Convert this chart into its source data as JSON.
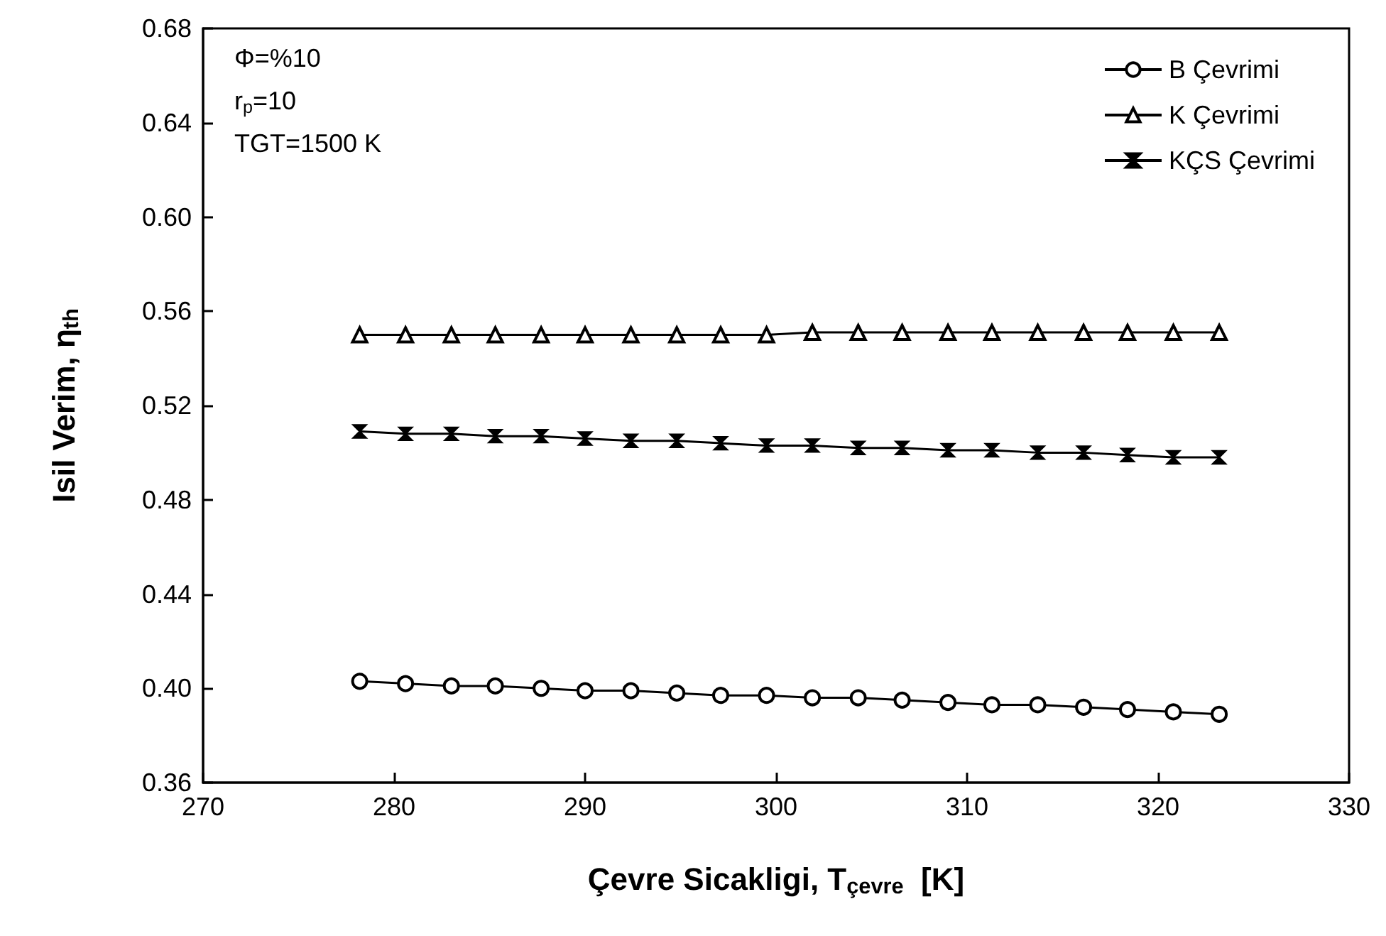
{
  "chart_data": {
    "type": "line",
    "xlabel": "Çevre Sicakligi, T$_{çevre}$  [K]",
    "ylabel": "Isil Verim, η$_{th}$",
    "x": [
      278.2,
      280.6,
      283.0,
      285.3,
      287.7,
      290.0,
      292.4,
      294.8,
      297.1,
      299.5,
      301.9,
      304.3,
      306.6,
      309.0,
      311.3,
      313.7,
      316.1,
      318.4,
      320.8,
      323.2
    ],
    "series": [
      {
        "name": "B Çevrimi",
        "color": "#000000",
        "marker": "circle",
        "values": [
          0.403,
          0.402,
          0.401,
          0.401,
          0.4,
          0.399,
          0.399,
          0.398,
          0.397,
          0.397,
          0.396,
          0.396,
          0.395,
          0.394,
          0.393,
          0.393,
          0.392,
          0.391,
          0.39,
          0.389
        ]
      },
      {
        "name": "K Çevrimi",
        "color": "#000000",
        "marker": "triangle",
        "values": [
          0.55,
          0.55,
          0.55,
          0.55,
          0.55,
          0.55,
          0.55,
          0.55,
          0.55,
          0.55,
          0.551,
          0.551,
          0.551,
          0.551,
          0.551,
          0.551,
          0.551,
          0.551,
          0.551,
          0.551
        ]
      },
      {
        "name": "KÇS Çevrimi",
        "color": "#000000",
        "marker": "diamond",
        "values": [
          0.509,
          0.508,
          0.508,
          0.507,
          0.507,
          0.506,
          0.505,
          0.505,
          0.504,
          0.503,
          0.503,
          0.502,
          0.502,
          0.501,
          0.501,
          0.5,
          0.5,
          0.499,
          0.498,
          0.498
        ]
      }
    ],
    "xlim": [
      270,
      330
    ],
    "xticks": [
      270,
      280,
      290,
      300,
      310,
      320,
      330
    ],
    "ylim": [
      0.36,
      0.68
    ],
    "yticks": [
      {
        "value": 0.36,
        "label": "0.36"
      },
      {
        "value": 0.4,
        "label": "0.40"
      },
      {
        "value": 0.44,
        "label": "0.44"
      },
      {
        "value": 0.48,
        "label": "0.48"
      },
      {
        "value": 0.52,
        "label": "0.52"
      },
      {
        "value": 0.56,
        "label": "0.56"
      },
      {
        "value": 0.6,
        "label": "0.60"
      },
      {
        "value": 0.64,
        "label": "0.64"
      },
      {
        "value": 0.68,
        "label": "0.68"
      }
    ],
    "annotations": [
      "Φ=%10",
      "r$_{p}$=10",
      "TGT=1500 K"
    ],
    "grid": false,
    "legend": "top right",
    "line_style": "solid"
  }
}
